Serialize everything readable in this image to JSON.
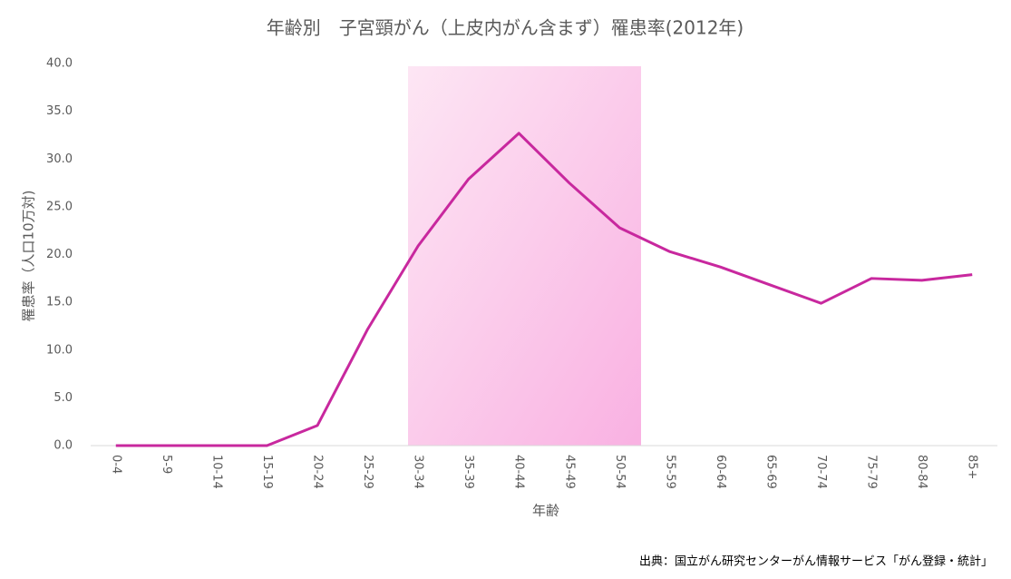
{
  "chart_data": {
    "type": "line",
    "title": "年齢別　子宮頸がん（上皮内がん含まず）罹患率(2012年)",
    "x_label": "年齢",
    "y_label": "罹患率（人口10万対)",
    "source": "出典：国立がん研究センターがん情報サービス「がん登録・統計」",
    "categories": [
      "0-4",
      "5-9",
      "10-14",
      "15-19",
      "20-24",
      "25-29",
      "30-34",
      "35-39",
      "40-44",
      "45-49",
      "50-54",
      "55-59",
      "60-64",
      "65-69",
      "70-74",
      "75-79",
      "80-84",
      "85+"
    ],
    "values": [
      0,
      0,
      0,
      0,
      2.1,
      12.2,
      20.9,
      27.9,
      32.7,
      27.5,
      22.8,
      20.3,
      18.7,
      16.8,
      14.9,
      17.5,
      17.3,
      17.9
    ],
    "color": "#c8289e",
    "ylim": [
      0,
      40
    ],
    "yticks": [
      {
        "value": 0,
        "label": "0.0"
      },
      {
        "value": 5,
        "label": "5.0"
      },
      {
        "value": 10,
        "label": "10.0"
      },
      {
        "value": 15,
        "label": "15.0"
      },
      {
        "value": 20,
        "label": "20.0"
      },
      {
        "value": 25,
        "label": "25.0"
      },
      {
        "value": 30,
        "label": "30.0"
      },
      {
        "value": 35,
        "label": "35.0"
      },
      {
        "value": 40,
        "label": "40.0"
      }
    ],
    "grid": false
  }
}
